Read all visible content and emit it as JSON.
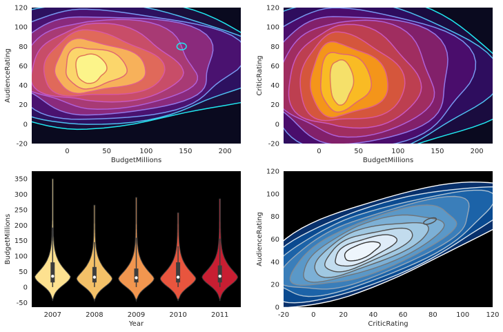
{
  "chart_data": [
    {
      "type": "kde-contour",
      "title": "",
      "xlabel": "BudgetMillions",
      "ylabel": "AudienceRating",
      "xlim": [
        -45,
        220
      ],
      "ylim": [
        -20,
        120
      ],
      "xticks": [
        0,
        50,
        100,
        150,
        200
      ],
      "yticks": [
        -20,
        0,
        20,
        40,
        60,
        80,
        100,
        120
      ],
      "fill_palette": "magma",
      "line_colors": [
        "#20e8f0",
        "#4fc0f0",
        "#7898f0",
        "#9478e8",
        "#b060d8",
        "#c858c0",
        "#d858a0",
        "#e06088",
        "#e06870",
        "#e07858"
      ],
      "peak": {
        "x": 25,
        "y": 56
      },
      "secondary_peak": {
        "x": 145,
        "y": 80
      }
    },
    {
      "type": "kde-contour",
      "title": "",
      "xlabel": "BudgetMillions",
      "ylabel": "CriticRating",
      "xlim": [
        -45,
        220
      ],
      "ylim": [
        -20,
        120
      ],
      "xticks": [
        0,
        50,
        100,
        150,
        200
      ],
      "yticks": [
        -20,
        0,
        20,
        40,
        60,
        80,
        100,
        120
      ],
      "fill_palette": "inferno",
      "line_colors": [
        "#20e8f0",
        "#4fc0f0",
        "#7898f0",
        "#9478e8",
        "#b060d8",
        "#c858c0",
        "#d858a0",
        "#e06088",
        "#e06870",
        "#e07858"
      ],
      "peak": {
        "x": 25,
        "y": 40
      }
    },
    {
      "type": "violin",
      "title": "",
      "xlabel": "Year",
      "ylabel": "BudgetMillions",
      "categories": [
        "2007",
        "2008",
        "2009",
        "2010",
        "2011"
      ],
      "ylim": [
        -65,
        375
      ],
      "yticks": [
        -50,
        0,
        50,
        100,
        150,
        200,
        250,
        300,
        350
      ],
      "colors": [
        "#fde190",
        "#f4c168",
        "#f1964f",
        "#e8553e",
        "#c81e32"
      ],
      "series": [
        {
          "min": 0,
          "max": 350,
          "q1": 15,
          "median": 35,
          "q3": 80,
          "mode": 35
        },
        {
          "min": 0,
          "max": 265,
          "q1": 15,
          "median": 32,
          "q3": 65,
          "mode": 30
        },
        {
          "min": 0,
          "max": 290,
          "q1": 15,
          "median": 30,
          "q3": 60,
          "mode": 30
        },
        {
          "min": 0,
          "max": 240,
          "q1": 15,
          "median": 32,
          "q3": 80,
          "mode": 30
        },
        {
          "min": 0,
          "max": 285,
          "q1": 15,
          "median": 35,
          "q3": 70,
          "mode": 35
        }
      ]
    },
    {
      "type": "kde-contour",
      "title": "",
      "xlabel": "CriticRating",
      "ylabel": "AudienceRating",
      "xlim": [
        -20,
        120
      ],
      "ylim": [
        0,
        120
      ],
      "xticks": [
        -20,
        0,
        20,
        40,
        60,
        80,
        100,
        120
      ],
      "yticks": [
        0,
        20,
        40,
        60,
        80,
        100,
        120
      ],
      "fill_palette": "Blues",
      "line_colors": [
        "#ffffff",
        "#d8e4ee",
        "#b0c4d4",
        "#98a8b8",
        "#808c98",
        "#707478",
        "#606060",
        "#505050",
        "#404040",
        "#303030"
      ],
      "peak": {
        "x": 25,
        "y": 47
      },
      "secondary_peak": {
        "x": 78,
        "y": 76
      }
    }
  ]
}
